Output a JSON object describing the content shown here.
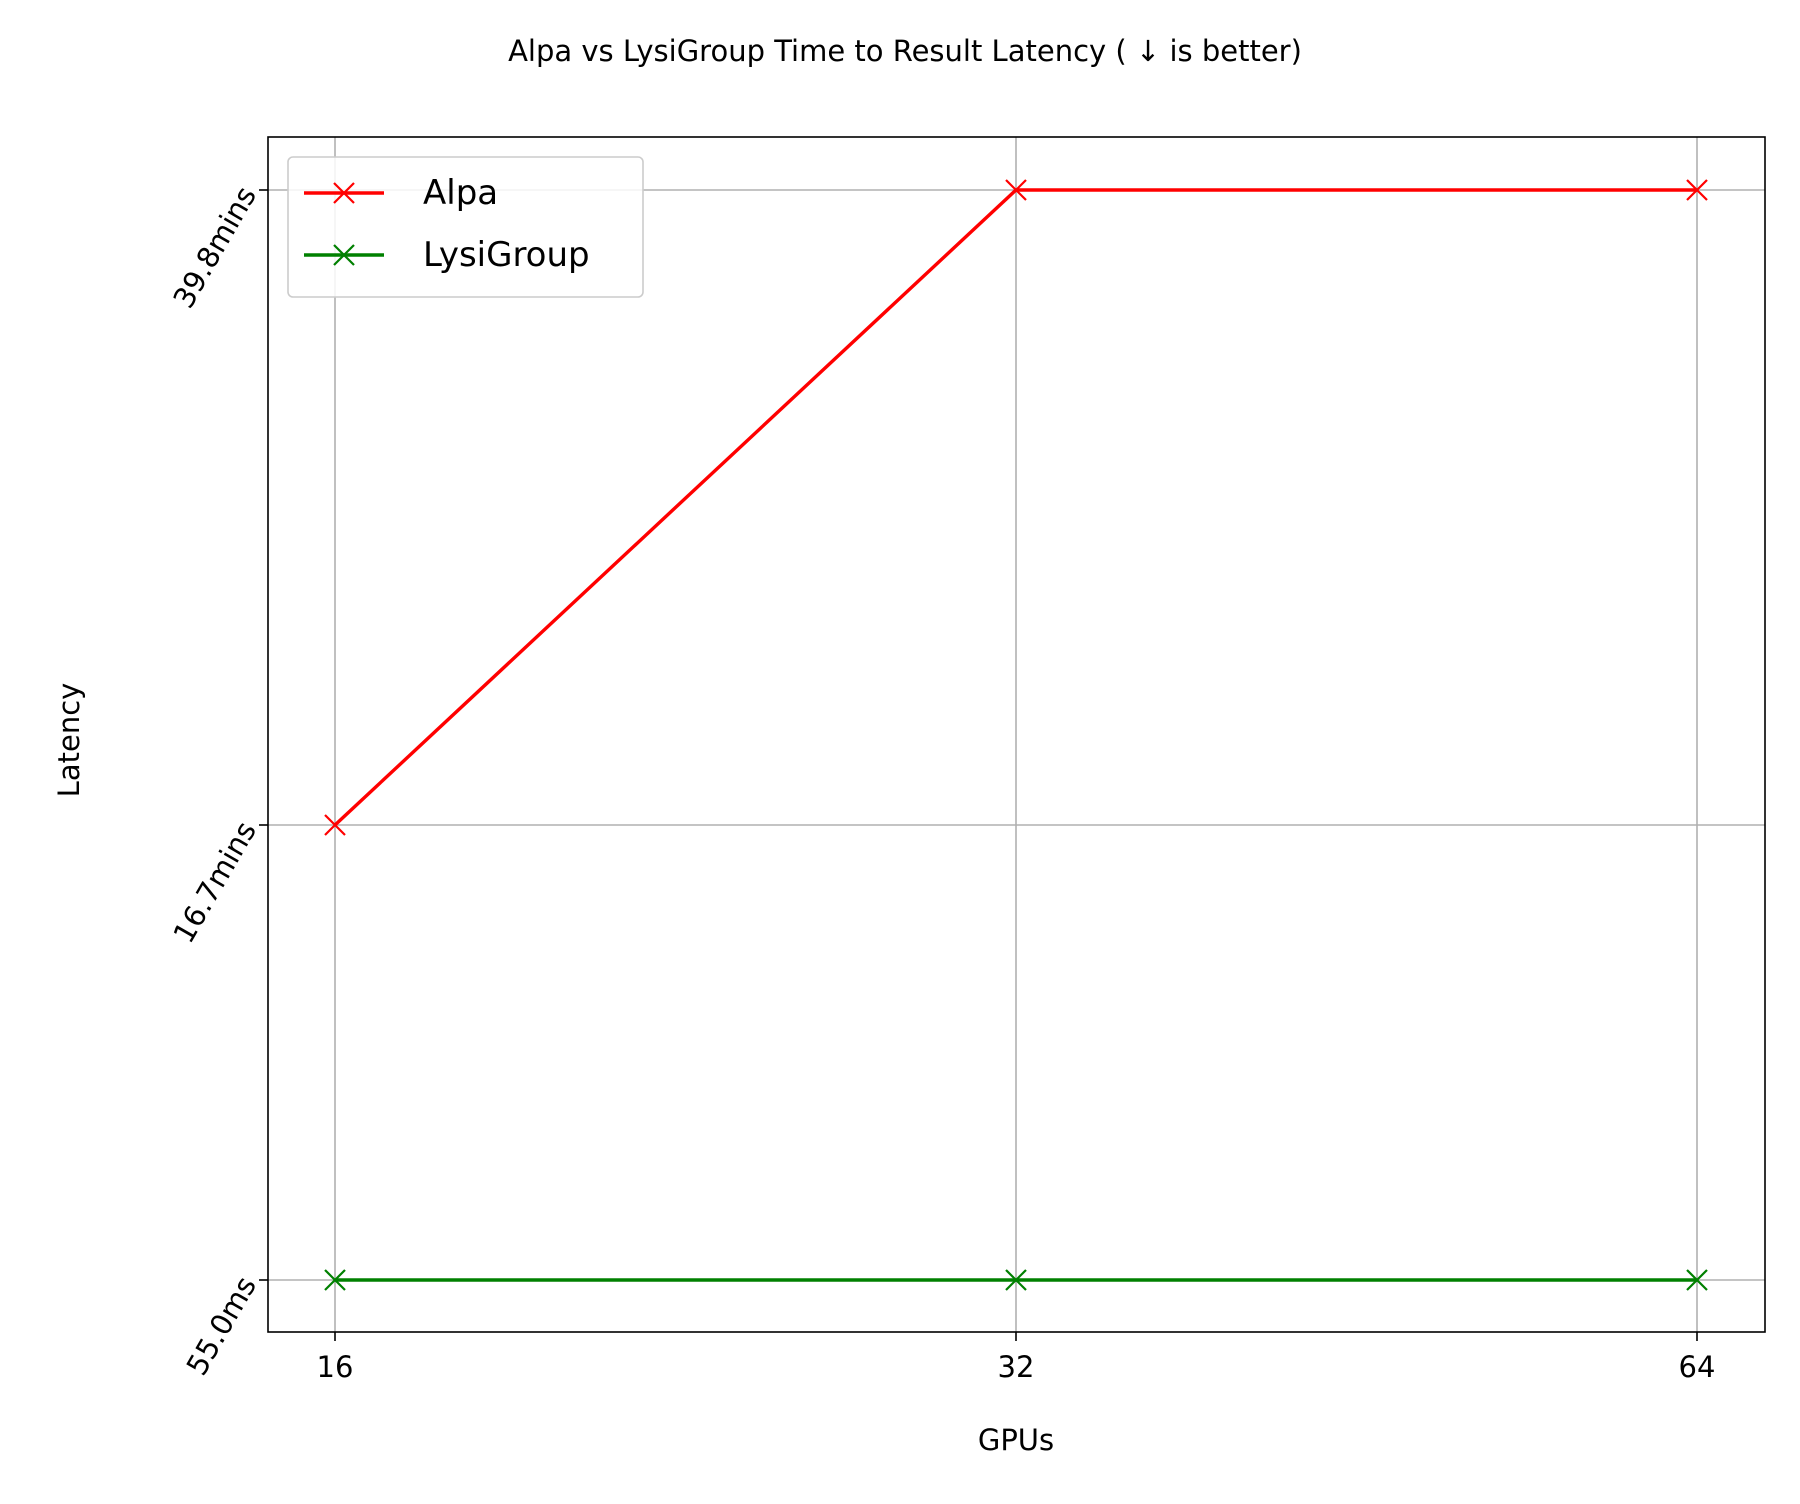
{
  "chart_data": {
    "type": "line",
    "title": "Alpa vs LysiGroup Time to Result Latency ( ↓  is better)",
    "xlabel": "GPUs",
    "ylabel": "Latency",
    "x_ticks": [
      "16",
      "32",
      "64"
    ],
    "y_ticks": [
      {
        "value_seconds": 0.055,
        "label": "55.0ms"
      },
      {
        "value_seconds": 1002,
        "label": "16.7mins"
      },
      {
        "value_seconds": 2388,
        "label": "39.8mins"
      }
    ],
    "y_scale": "piecewise (ticks evenly labeled at 55.0ms, 16.7mins, 39.8mins)",
    "grid": true,
    "legend_position": "upper left",
    "series": [
      {
        "name": "Alpa",
        "color": "#ff0000",
        "marker": "x",
        "x": [
          "16",
          "32",
          "64"
        ],
        "y_seconds": [
          1002,
          2388,
          2388
        ],
        "y_labels": [
          "16.7mins",
          "39.8mins",
          "39.8mins"
        ]
      },
      {
        "name": "LysiGroup",
        "color": "#008000",
        "marker": "x",
        "x": [
          "16",
          "32",
          "64"
        ],
        "y_seconds": [
          0.055,
          0.055,
          0.055
        ],
        "y_labels": [
          "55.0ms",
          "55.0ms",
          "55.0ms"
        ]
      }
    ]
  }
}
